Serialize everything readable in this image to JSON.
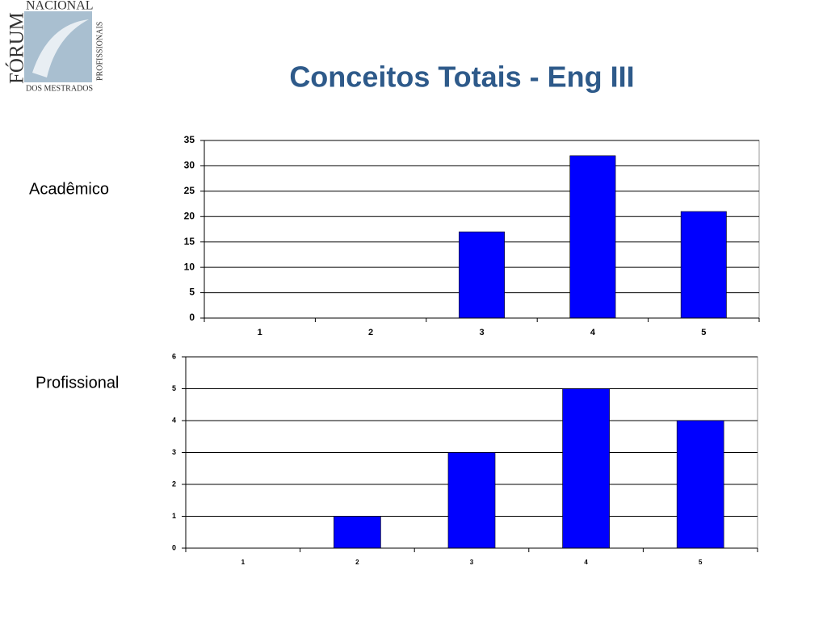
{
  "title": "Conceitos Totais - Eng III",
  "logo": {
    "top": "NACIONAL",
    "main": "FÓRUM",
    "bottom": "DOS MESTRADOS",
    "side": "PROFISSIONAIS"
  },
  "chart_data": [
    {
      "type": "bar",
      "title": "Acadêmico",
      "categories": [
        "1",
        "2",
        "3",
        "4",
        "5"
      ],
      "values": [
        0,
        0,
        17,
        32,
        21
      ],
      "color": "#0000ff",
      "ylim": [
        0,
        35
      ],
      "yticks": [
        0,
        5,
        10,
        15,
        20,
        25,
        30,
        35
      ],
      "grid": true
    },
    {
      "type": "bar",
      "title": "Profissional",
      "categories": [
        "1",
        "2",
        "3",
        "4",
        "5"
      ],
      "values": [
        0,
        1,
        3,
        5,
        4
      ],
      "color": "#0000ff",
      "ylim": [
        0,
        6
      ],
      "yticks": [
        0,
        1,
        2,
        3,
        4,
        5,
        6
      ],
      "grid": true
    }
  ]
}
